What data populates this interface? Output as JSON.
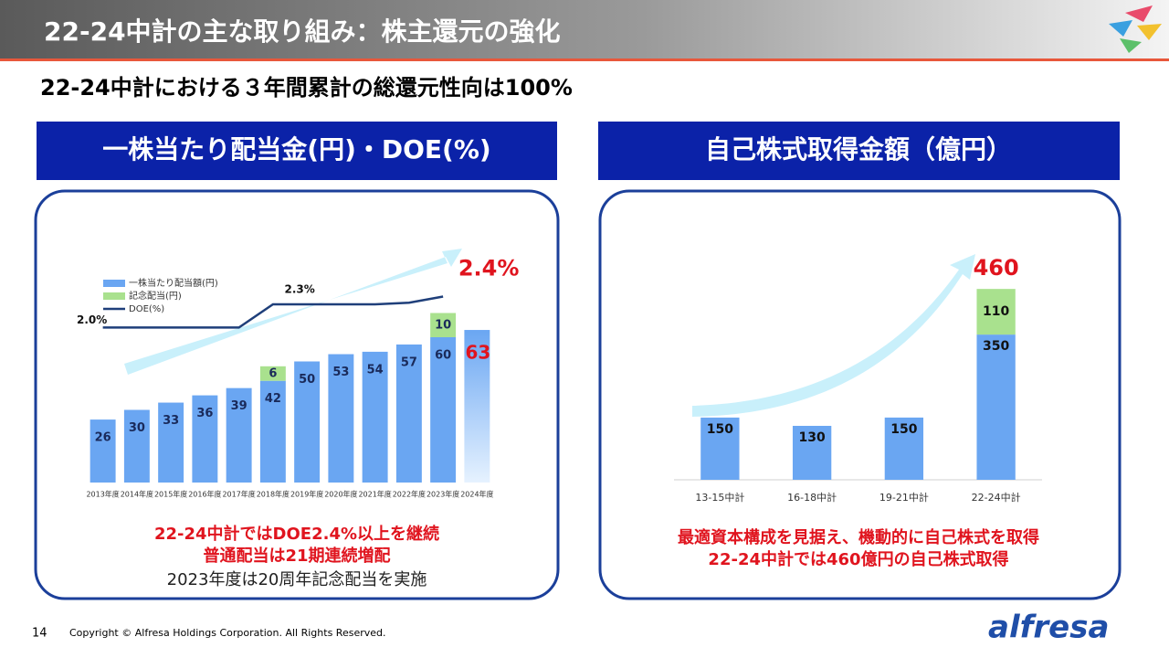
{
  "header": {
    "title": "22-24中計の主な取り組み：株主還元の強化",
    "subtitle": "22-24中計における３年間累計の総還元性向は100%"
  },
  "panels": [
    {
      "heading": "一株当たり配当金(円)・DOE(%)",
      "notes": [
        "22-24中計ではDOE2.4%以上を継続",
        "普通配当は21期連続増配",
        "2023年度は20周年記念配当を実施"
      ]
    },
    {
      "heading": "自己株式取得金額（億円）",
      "notes": [
        "最適資本構成を見据え、機動的に自己株式を取得",
        "22-24中計では460億円の自己株式取得"
      ]
    }
  ],
  "chart_data": [
    {
      "type": "bar",
      "stacked": true,
      "categories": [
        "2013年度",
        "2014年度",
        "2015年度",
        "2016年度",
        "2017年度",
        "2018年度",
        "2019年度",
        "2020年度",
        "2021年度",
        "2022年度",
        "2023年度",
        "2024年度"
      ],
      "series": [
        {
          "name": "一株当たり配当額(円)",
          "color": "#6aa6f2",
          "values": [
            26,
            30,
            33,
            36,
            39,
            42,
            50,
            53,
            54,
            57,
            60,
            63
          ]
        },
        {
          "name": "記念配当(円)",
          "color": "#a9e18e",
          "values": [
            null,
            null,
            null,
            null,
            null,
            6,
            null,
            null,
            null,
            null,
            10,
            null
          ]
        },
        {
          "name": "DOE(%)",
          "type": "line",
          "axis": "y2",
          "color": "#1f3f7a",
          "values": [
            2.0,
            2.0,
            2.0,
            2.0,
            2.0,
            2.3,
            2.3,
            2.3,
            2.3,
            2.32,
            2.4,
            null
          ],
          "value_labels": [
            "2.0%",
            null,
            null,
            null,
            null,
            null,
            "2.3%",
            null,
            null,
            null,
            "2.4%",
            null
          ]
        }
      ],
      "ylim": [
        0,
        80
      ],
      "y2lim": [
        0,
        2.5
      ],
      "legend": "top-left"
    },
    {
      "type": "bar",
      "stacked": true,
      "categories": [
        "13-15中計",
        "16-18中計",
        "19-21中計",
        "22-24中計"
      ],
      "series": [
        {
          "name": null,
          "color": "#6aa6f2",
          "values": [
            150,
            130,
            150,
            350
          ]
        },
        {
          "name": null,
          "color": "#a9e18e",
          "values": [
            null,
            null,
            null,
            110
          ]
        }
      ],
      "total_labels": [
        null,
        null,
        null,
        "460"
      ],
      "ylim": [
        0,
        500
      ]
    }
  ],
  "footer": {
    "page": "14",
    "copyright": "Copyright © Alfresa Holdings Corporation. All Rights Reserved.",
    "logo": "alfresa"
  }
}
